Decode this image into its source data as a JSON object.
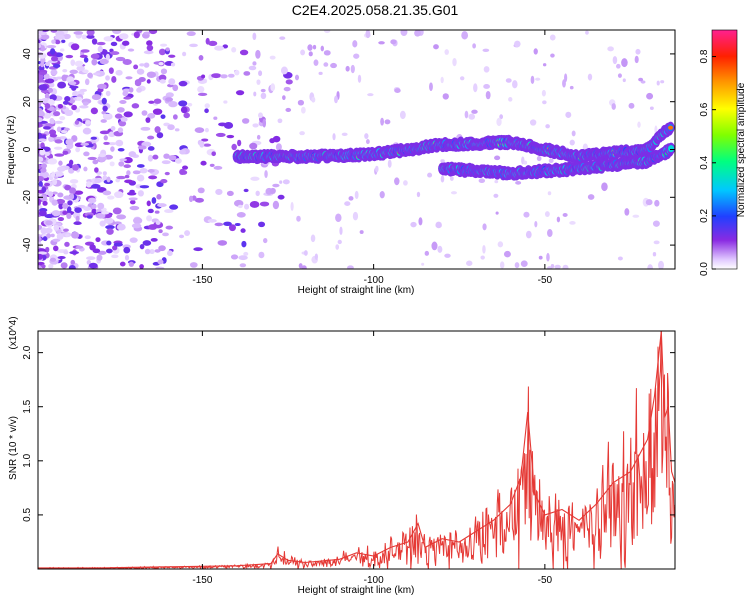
{
  "title": "C2E4.2025.058.21.35.G01",
  "chart_data": [
    {
      "type": "heatmap",
      "xlabel": "Height of straight line (km)",
      "ylabel": "Frequency (Hz)",
      "xlim": [
        -198,
        -12
      ],
      "ylim": [
        -50,
        50
      ],
      "x_ticks": [
        -150,
        -100,
        -50
      ],
      "y_ticks": [
        -40,
        -20,
        0,
        20,
        40
      ],
      "colorbar": {
        "label": "Normalized spectral amplitude",
        "range": [
          0,
          0.9
        ],
        "ticks": [
          0.0,
          0.2,
          0.4,
          0.6,
          0.8
        ]
      },
      "ridges": [
        {
          "name": "main-trace",
          "x": [
            -140,
            -120,
            -100,
            -80,
            -60,
            -40,
            -20,
            -13
          ],
          "y": [
            -3,
            -3,
            -2,
            2,
            3,
            -3,
            0,
            10
          ]
        },
        {
          "name": "lower-trace",
          "x": [
            -80,
            -60,
            -40,
            -20,
            -13
          ],
          "y": [
            -8,
            -10,
            -8,
            -5,
            0
          ]
        }
      ]
    },
    {
      "type": "line",
      "xlabel": "Height of straight line (km)",
      "ylabel": "SNR (10 * v/v)",
      "y_multiplier": "(x10^4)",
      "xlim": [
        -198,
        -12
      ],
      "ylim": [
        0,
        2.2
      ],
      "x_ticks": [
        -150,
        -100,
        -50
      ],
      "y_ticks": [
        0.5,
        1.0,
        1.5,
        2.0
      ],
      "series": [
        {
          "name": "SNR",
          "color": "#e53935",
          "x": [
            -198,
            -180,
            -160,
            -140,
            -130,
            -128,
            -125,
            -120,
            -110,
            -105,
            -100,
            -95,
            -90,
            -87,
            -85,
            -80,
            -75,
            -70,
            -65,
            -60,
            -57,
            -55,
            -53,
            -50,
            -45,
            -40,
            -35,
            -30,
            -25,
            -20,
            -18,
            -16,
            -15,
            -14,
            -13,
            -12
          ],
          "y": [
            0.01,
            0.01,
            0.02,
            0.03,
            0.05,
            0.14,
            0.08,
            0.06,
            0.09,
            0.15,
            0.12,
            0.2,
            0.25,
            0.42,
            0.2,
            0.28,
            0.25,
            0.35,
            0.45,
            0.6,
            0.85,
            1.45,
            0.7,
            0.5,
            0.55,
            0.45,
            0.6,
            0.8,
            0.9,
            1.2,
            1.6,
            2.2,
            1.4,
            1.5,
            0.9,
            0.8
          ]
        }
      ]
    }
  ]
}
